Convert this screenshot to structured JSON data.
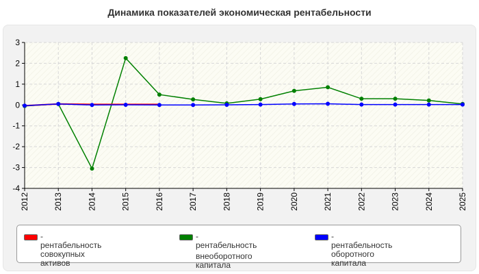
{
  "chart_data": {
    "type": "line",
    "title": "Динамика показателей экономическая рентабельности",
    "x": [
      "2012",
      "2013",
      "2014",
      "2015",
      "2016",
      "2017",
      "2018",
      "2019",
      "2020",
      "2021",
      "2022",
      "2023",
      "2024",
      "2025"
    ],
    "ylim": [
      -4,
      3
    ],
    "yticks": [
      "3",
      "2",
      "1",
      "0",
      "-1",
      "-2",
      "-3",
      "-4"
    ],
    "grid": true,
    "legend_position": "bottom",
    "series": [
      {
        "name": "- рентабельность совокупных активов",
        "color": "#ff0000",
        "values": [
          -0.03,
          0.05,
          0.03,
          0.03,
          0.03,
          null,
          null,
          null,
          null,
          0.05,
          null,
          null,
          null,
          null
        ]
      },
      {
        "name": "- рентабельность внеоборотного капитала",
        "color": "#008000",
        "values": [
          -0.05,
          0.05,
          -3.05,
          2.25,
          0.5,
          0.27,
          0.08,
          0.28,
          0.68,
          0.85,
          0.3,
          0.3,
          0.22,
          0.05
        ]
      },
      {
        "name": "- рентабельность оборотного капитала",
        "color": "#0000ff",
        "values": [
          -0.03,
          0.05,
          0.0,
          0.01,
          0.0,
          0.0,
          0.01,
          0.02,
          0.05,
          0.06,
          0.02,
          0.02,
          0.02,
          0.02
        ]
      }
    ]
  },
  "legend": {
    "items": [
      {
        "label_line1": "- рентабельность совокупных",
        "label_line2": "активов",
        "color": "#ff0000"
      },
      {
        "label_line1": "- рентабельность",
        "label_line2": "внеоборотного капитала",
        "color": "#008000"
      },
      {
        "label_line1": "- рентабельность оборотного",
        "label_line2": "капитала",
        "color": "#0000ff"
      }
    ]
  }
}
